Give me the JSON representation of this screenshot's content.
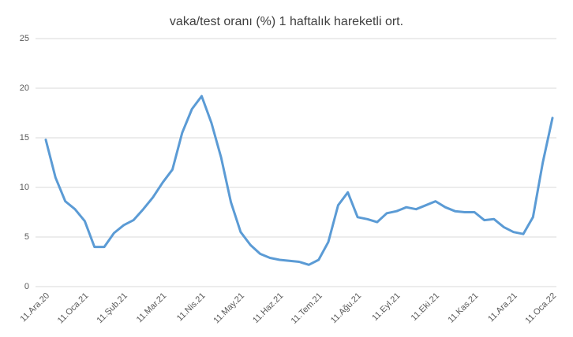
{
  "chart_data": {
    "type": "line",
    "title": "vaka/test oranı (%) 1 haftalık hareketli ort.",
    "categories": [
      "11.Ara.20",
      null,
      null,
      null,
      "11.Oca.21",
      null,
      null,
      null,
      "11.Şub.21",
      null,
      null,
      null,
      "11.Mar.21",
      null,
      null,
      null,
      "11.Nis.21",
      null,
      null,
      null,
      "11.May.21",
      null,
      null,
      null,
      "11.Haz.21",
      null,
      null,
      null,
      "11.Tem.21",
      null,
      null,
      null,
      "11.Ağu.21",
      null,
      null,
      null,
      "11.Eyl.21",
      null,
      null,
      null,
      "11.Eki.21",
      null,
      null,
      null,
      "11.Kas.21",
      null,
      null,
      null,
      "11.Ara.21",
      null,
      null,
      null,
      "11.Oca.22"
    ],
    "series": [
      {
        "name": "vaka/test oranı",
        "color": "#5b9bd5",
        "values": [
          14.8,
          11.0,
          8.6,
          7.8,
          6.6,
          4.0,
          4.0,
          5.4,
          6.2,
          6.7,
          7.8,
          9.0,
          10.5,
          11.8,
          15.5,
          17.9,
          19.2,
          16.5,
          13.0,
          8.5,
          5.5,
          4.2,
          3.3,
          2.9,
          2.7,
          2.6,
          2.5,
          2.2,
          2.7,
          4.5,
          8.2,
          9.5,
          7.0,
          6.8,
          6.5,
          7.4,
          7.6,
          8.0,
          7.8,
          8.2,
          8.6,
          8.0,
          7.6,
          7.5,
          7.5,
          6.7,
          6.8,
          6.0,
          5.5,
          5.3,
          7.0,
          12.5,
          17.0
        ]
      }
    ],
    "ylim": [
      0,
      25
    ],
    "yticks": [
      0,
      5,
      10,
      15,
      20,
      25
    ],
    "grid": true
  }
}
